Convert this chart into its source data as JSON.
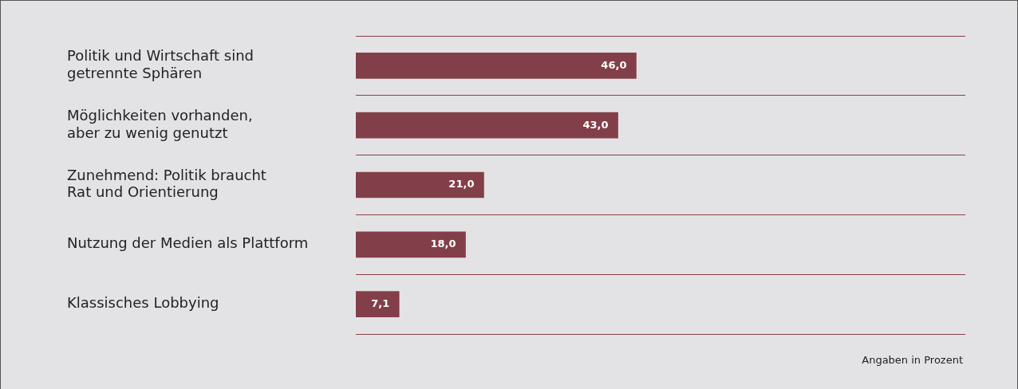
{
  "chart_data": {
    "type": "bar",
    "orientation": "horizontal",
    "categories": [
      "Politik und Wirtschaft sind\ngetrennte Sphären",
      "Möglichkeiten vorhanden,\naber zu wenig genutzt",
      "Zunehmend: Politik braucht\nRat und Orientierung",
      "Nutzung der Medien als Plattform",
      "Klassisches Lobbying"
    ],
    "values": [
      46.0,
      43.0,
      21.0,
      18.0,
      7.1
    ],
    "value_labels": [
      "46,0",
      "43,0",
      "21,0",
      "18,0",
      "7,1"
    ],
    "color": "#833f49",
    "xlim": [
      0,
      100
    ],
    "grid": "y",
    "legend": false,
    "annotations": [
      "Angaben in Prozent"
    ]
  }
}
